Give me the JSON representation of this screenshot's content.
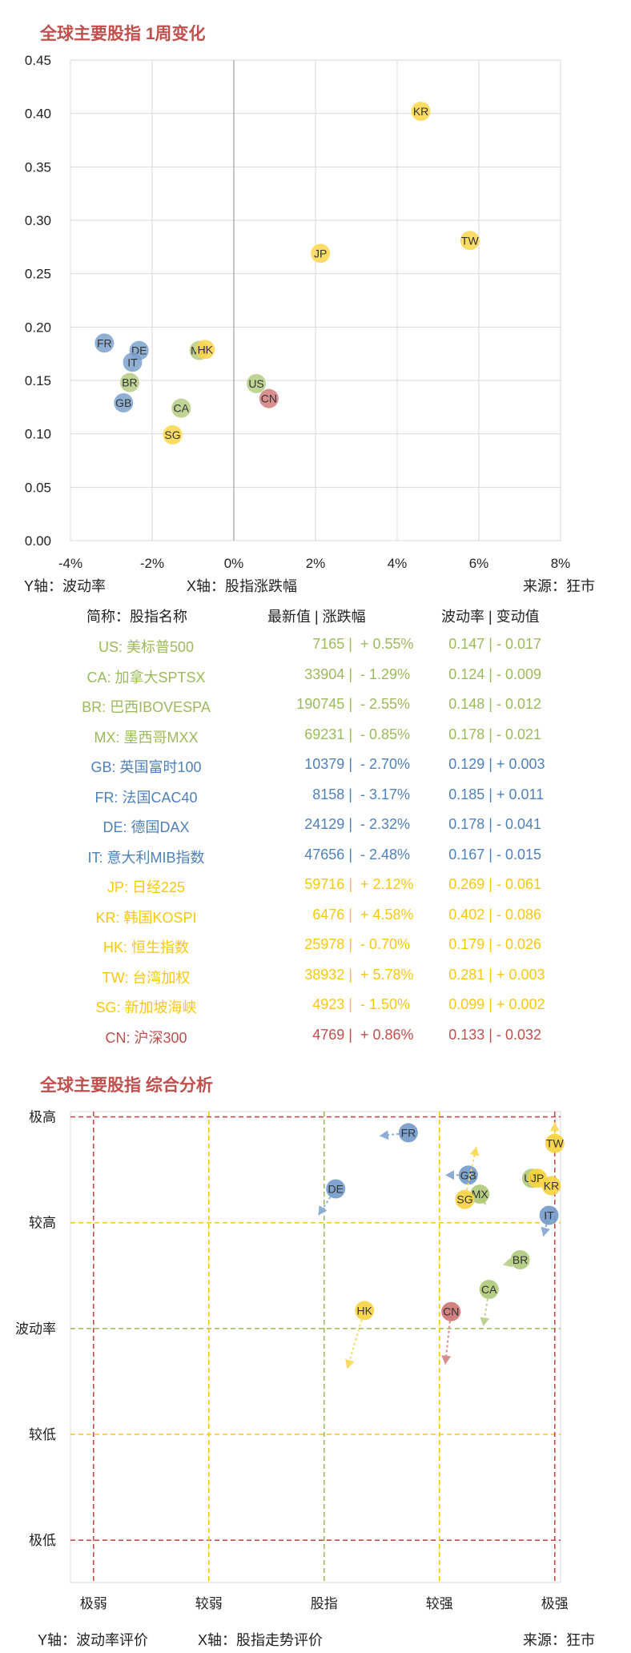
{
  "chart1": {
    "title": "全球主要股指 1周变化",
    "y_note": "Y轴：波动率",
    "x_note": "X轴：股指涨跌幅",
    "source": "来源：狂市",
    "colors": {
      "green": "#9bbb59",
      "blue": "#4f81bd",
      "yellow": "#f9c80e",
      "red": "#c0504d"
    }
  },
  "chart_data": [
    {
      "type": "scatter",
      "title": "全球主要股指 1周变化",
      "xlabel": "X轴：股指涨跌幅",
      "ylabel": "Y轴：波动率",
      "xlim": [
        -0.04,
        0.08
      ],
      "ylim": [
        0,
        0.45
      ],
      "x_ticks": [
        "-4%",
        "-2%",
        "0%",
        "2%",
        "4%",
        "6%",
        "8%"
      ],
      "y_ticks": [
        "0.00",
        "0.05",
        "0.10",
        "0.15",
        "0.20",
        "0.25",
        "0.30",
        "0.35",
        "0.40",
        "0.45"
      ],
      "grid": true,
      "points": [
        {
          "label": "US",
          "x": 0.0055,
          "y": 0.147,
          "color": "green"
        },
        {
          "label": "CA",
          "x": -0.0129,
          "y": 0.124,
          "color": "green"
        },
        {
          "label": "BR",
          "x": -0.0255,
          "y": 0.148,
          "color": "green"
        },
        {
          "label": "MX",
          "x": -0.0085,
          "y": 0.178,
          "color": "green"
        },
        {
          "label": "GB",
          "x": -0.027,
          "y": 0.129,
          "color": "blue"
        },
        {
          "label": "FR",
          "x": -0.0317,
          "y": 0.185,
          "color": "blue"
        },
        {
          "label": "DE",
          "x": -0.0232,
          "y": 0.178,
          "color": "blue"
        },
        {
          "label": "IT",
          "x": -0.0248,
          "y": 0.167,
          "color": "blue"
        },
        {
          "label": "JP",
          "x": 0.0212,
          "y": 0.269,
          "color": "yellow"
        },
        {
          "label": "KR",
          "x": 0.0458,
          "y": 0.402,
          "color": "yellow"
        },
        {
          "label": "HK",
          "x": -0.007,
          "y": 0.179,
          "color": "yellow"
        },
        {
          "label": "TW",
          "x": 0.0578,
          "y": 0.281,
          "color": "yellow"
        },
        {
          "label": "SG",
          "x": -0.015,
          "y": 0.099,
          "color": "yellow"
        },
        {
          "label": "CN",
          "x": 0.0086,
          "y": 0.133,
          "color": "red"
        }
      ]
    },
    {
      "type": "scatter",
      "title": "全球主要股指 综合分析",
      "xlabel": "X轴：股指走势评价",
      "ylabel": "Y轴：波动率评价",
      "x_categories": [
        "极弱",
        "较弱",
        "股指",
        "较强",
        "极强"
      ],
      "x_positions": [
        -2,
        -1,
        0,
        1,
        2
      ],
      "y_categories": [
        "极低",
        "较低",
        "波动率",
        "较高",
        "极高"
      ],
      "y_positions": [
        -2,
        -1,
        0,
        1,
        2
      ],
      "xlim": [
        -2.2,
        2.05
      ],
      "ylim": [
        -2.4,
        2.05
      ],
      "points": [
        {
          "label": "FR",
          "x": 0.73,
          "y": 1.85,
          "dx": -0.25,
          "dy": -0.03,
          "color": "blue"
        },
        {
          "label": "DE",
          "x": 0.1,
          "y": 1.32,
          "dx": -0.15,
          "dy": -0.25,
          "color": "blue"
        },
        {
          "label": "GB",
          "x": 1.25,
          "y": 1.45,
          "dx": -0.2,
          "dy": 0.0,
          "color": "blue"
        },
        {
          "label": "IT",
          "x": 1.95,
          "y": 1.07,
          "dx": -0.05,
          "dy": -0.2,
          "color": "blue"
        },
        {
          "label": "US",
          "x": 1.8,
          "y": 1.42,
          "dx": 0.0,
          "dy": 0.0,
          "color": "green"
        },
        {
          "label": "MX",
          "x": 1.35,
          "y": 1.27,
          "dx": 0.05,
          "dy": -0.1,
          "color": "green"
        },
        {
          "label": "BR",
          "x": 1.7,
          "y": 0.65,
          "dx": -0.15,
          "dy": -0.05,
          "color": "green"
        },
        {
          "label": "CA",
          "x": 1.43,
          "y": 0.37,
          "dx": -0.05,
          "dy": -0.35,
          "color": "green"
        },
        {
          "label": "TW",
          "x": 2.0,
          "y": 1.75,
          "dx": 0.0,
          "dy": 0.2,
          "color": "yellow"
        },
        {
          "label": "JP",
          "x": 1.85,
          "y": 1.42,
          "dx": 0.0,
          "dy": 0.0,
          "color": "yellow"
        },
        {
          "label": "KR",
          "x": 1.97,
          "y": 1.35,
          "dx": -0.1,
          "dy": 0.05,
          "color": "yellow"
        },
        {
          "label": "SG",
          "x": 1.22,
          "y": 1.22,
          "dx": 0.1,
          "dy": 0.5,
          "color": "yellow"
        },
        {
          "label": "HK",
          "x": 0.35,
          "y": 0.17,
          "dx": -0.15,
          "dy": -0.55,
          "color": "yellow"
        },
        {
          "label": "CN",
          "x": 1.1,
          "y": 0.16,
          "dx": -0.05,
          "dy": -0.5,
          "color": "red"
        }
      ]
    }
  ],
  "table": {
    "headers": {
      "name": "简称：股指名称",
      "latest": "最新值 | 涨跌幅",
      "vol": "波动率 | 变动值"
    },
    "rows": [
      {
        "name": "US: 美标普500",
        "latest": "7165",
        "chg": "+ 0.55%",
        "vol": "0.147",
        "vchg": "- 0.017",
        "color": "green"
      },
      {
        "name": "CA: 加拿大SPTSX",
        "latest": "33904",
        "chg": "- 1.29%",
        "vol": "0.124",
        "vchg": "- 0.009",
        "color": "green"
      },
      {
        "name": "BR: 巴西IBOVESPA",
        "latest": "190745",
        "chg": "- 2.55%",
        "vol": "0.148",
        "vchg": "- 0.012",
        "color": "green"
      },
      {
        "name": "MX: 墨西哥MXX",
        "latest": "69231",
        "chg": "- 0.85%",
        "vol": "0.178",
        "vchg": "- 0.021",
        "color": "green"
      },
      {
        "name": "GB: 英国富时100",
        "latest": "10379",
        "chg": "- 2.70%",
        "vol": "0.129",
        "vchg": "+ 0.003",
        "color": "blue"
      },
      {
        "name": "FR: 法国CAC40",
        "latest": "8158",
        "chg": "- 3.17%",
        "vol": "0.185",
        "vchg": "+ 0.011",
        "color": "blue"
      },
      {
        "name": "DE: 德国DAX",
        "latest": "24129",
        "chg": "- 2.32%",
        "vol": "0.178",
        "vchg": "- 0.041",
        "color": "blue"
      },
      {
        "name": "IT: 意大利MIB指数",
        "latest": "47656",
        "chg": "- 2.48%",
        "vol": "0.167",
        "vchg": "- 0.015",
        "color": "blue"
      },
      {
        "name": "JP: 日经225",
        "latest": "59716",
        "chg": "+ 2.12%",
        "vol": "0.269",
        "vchg": "- 0.061",
        "color": "yellow"
      },
      {
        "name": "KR: 韩国KOSPI",
        "latest": "6476",
        "chg": "+ 4.58%",
        "vol": "0.402",
        "vchg": "- 0.086",
        "color": "yellow"
      },
      {
        "name": "HK: 恒生指数",
        "latest": "25978",
        "chg": "- 0.70%",
        "vol": "0.179",
        "vchg": "- 0.026",
        "color": "yellow"
      },
      {
        "name": "TW: 台湾加权",
        "latest": "38932",
        "chg": "+ 5.78%",
        "vol": "0.281",
        "vchg": "+ 0.003",
        "color": "yellow"
      },
      {
        "name": "SG: 新加坡海峡",
        "latest": "4923",
        "chg": "- 1.50%",
        "vol": "0.099",
        "vchg": "+ 0.002",
        "color": "yellow"
      },
      {
        "name": "CN: 沪深300",
        "latest": "4769",
        "chg": "+ 0.86%",
        "vol": "0.133",
        "vchg": "- 0.032",
        "color": "red"
      }
    ]
  },
  "chart2": {
    "title": "全球主要股指 综合分析",
    "y_note": "Y轴：波动率评价",
    "x_note": "X轴：股指走势评价",
    "source": "来源：狂市"
  }
}
